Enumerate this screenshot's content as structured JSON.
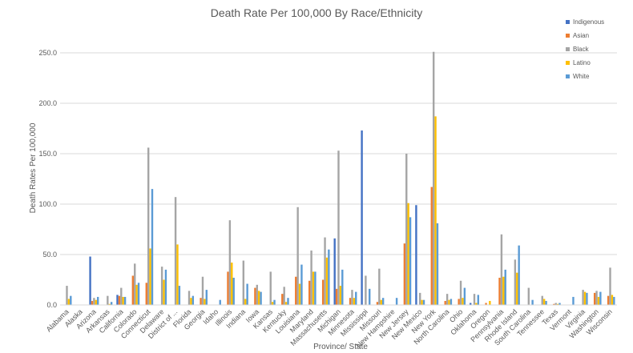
{
  "chart_data": {
    "type": "bar",
    "title": "Death Rate Per 100,000 By Race/Ethnicity",
    "xlabel": "Province/ State",
    "ylabel": "Death Rates Per 100,000",
    "ylim": [
      0,
      250
    ],
    "yticks": [
      "0.0",
      "50.0",
      "100.0",
      "150.0",
      "200.0",
      "250.0"
    ],
    "grid": true,
    "legend_position": "top-right",
    "categories": [
      "Alabama",
      "Alaska",
      "Arizona",
      "Arkansas",
      "California",
      "Colorado",
      "Connecticut",
      "Delaware",
      "District of ...",
      "Florida",
      "Georgia",
      "Idaho",
      "Illinois",
      "Indiana",
      "Iowa",
      "Kansas",
      "Kentucky",
      "Louisiana",
      "Maryland",
      "Massachusetts",
      "Michigan",
      "Minnesota",
      "Mississippi",
      "Missouri",
      "New Hampshire",
      "New Jersey",
      "New Mexico",
      "New York",
      "North Carolina",
      "Ohio",
      "Oklahoma",
      "Oregon",
      "Pennsylvania",
      "Rhode Island",
      "South Carolina",
      "Tennessee",
      "Texas",
      "Vermont",
      "Virginia",
      "Washington",
      "Wisconsin"
    ],
    "series": [
      {
        "name": "Indigenous",
        "color": "#4472c4",
        "values": [
          0,
          0,
          48,
          0,
          10,
          0,
          0,
          0,
          0,
          0,
          0,
          0,
          0,
          0,
          0,
          0,
          0,
          0,
          0,
          0,
          66,
          0,
          173,
          0,
          0,
          0,
          99,
          0,
          0,
          0,
          2,
          0,
          0,
          0,
          0,
          0,
          0,
          0,
          0,
          0,
          0
        ]
      },
      {
        "name": "Asian",
        "color": "#ed7d31",
        "values": [
          0,
          0,
          4,
          0,
          9,
          29,
          22,
          0,
          0,
          0,
          7,
          0,
          33,
          0,
          17,
          0,
          11,
          28,
          24,
          25,
          16,
          7,
          0,
          3,
          0,
          61,
          0,
          117,
          4,
          6,
          0,
          2,
          27,
          0,
          0,
          0,
          1,
          0,
          0,
          12,
          9
        ]
      },
      {
        "name": "Black",
        "color": "#a5a5a5",
        "values": [
          19,
          0,
          7,
          9,
          17,
          41,
          156,
          38,
          107,
          14,
          28,
          0,
          84,
          44,
          20,
          33,
          18,
          97,
          54,
          67,
          153,
          15,
          29,
          36,
          0,
          150,
          12,
          251,
          11,
          24,
          11,
          0,
          70,
          45,
          17,
          9,
          2,
          0,
          15,
          14,
          37
        ]
      },
      {
        "name": "Latino",
        "color": "#ffc000",
        "values": [
          6,
          0,
          5,
          1,
          8,
          20,
          56,
          25,
          60,
          7,
          6,
          0,
          42,
          6,
          14,
          3,
          3,
          21,
          33,
          47,
          19,
          7,
          0,
          5,
          0,
          101,
          5,
          187,
          5,
          7,
          2,
          4,
          28,
          32,
          0,
          6,
          1,
          0,
          13,
          8,
          10
        ]
      },
      {
        "name": "White",
        "color": "#5b9bd5",
        "values": [
          9,
          0,
          8,
          3,
          8,
          22,
          115,
          35,
          19,
          9,
          15,
          5,
          27,
          21,
          13,
          5,
          7,
          40,
          33,
          55,
          35,
          13,
          16,
          7,
          7,
          87,
          5,
          81,
          6,
          17,
          10,
          0,
          35,
          59,
          5,
          4,
          2,
          8,
          12,
          13,
          8
        ]
      }
    ]
  }
}
